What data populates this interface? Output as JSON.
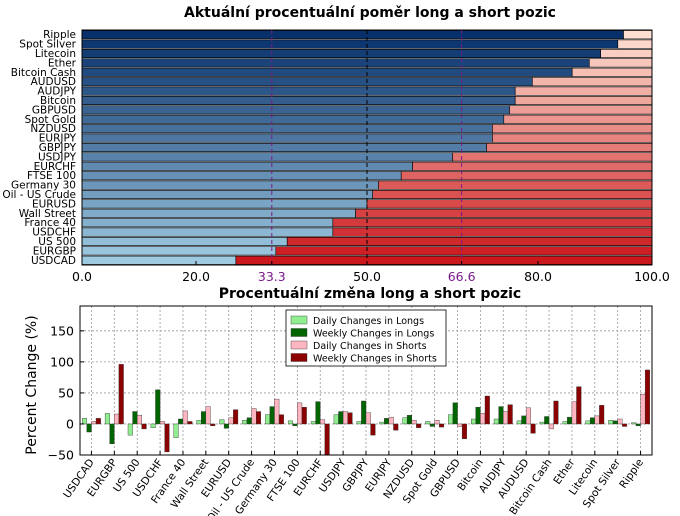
{
  "chart_data": [
    {
      "type": "bar",
      "orientation": "horizontal",
      "stacked": true,
      "title": "Aktuální procentuální poměr long a short pozic",
      "categories": [
        "Ripple",
        "Spot Silver",
        "Litecoin",
        "Ether",
        "Bitcoin Cash",
        "AUDUSD",
        "AUDJPY",
        "Bitcoin",
        "GBPUSD",
        "Spot Gold",
        "NZDUSD",
        "EURJPY",
        "GBPJPY",
        "USDJPY",
        "EURCHF",
        "FTSE 100",
        "Germany 30",
        "Oil - US Crude",
        "EURUSD",
        "Wall Street",
        "France 40",
        "USDCHF",
        "US 500",
        "EURGBP",
        "USDCAD"
      ],
      "long_percent": [
        95,
        94,
        91,
        89,
        86,
        79,
        76,
        76,
        75,
        74,
        72,
        72,
        71,
        65,
        58,
        56,
        52,
        51,
        50,
        48,
        44,
        44,
        36,
        34,
        27
      ],
      "xlim": [
        0,
        100
      ],
      "xticks": [
        "0.0",
        "20.0",
        "33.3",
        "50.0",
        "66.6",
        "80.0",
        "100.0"
      ],
      "marker_lines": [
        "33.3",
        "50.0",
        "66.6"
      ],
      "colors": {
        "long_dark": "#08306b",
        "long_light": "#9ecae1",
        "short_light": "#fee0d2",
        "short_dark": "#cb181d",
        "marker": "#7a1a8a"
      }
    },
    {
      "type": "bar",
      "title": "Procentuální změna long a short pozic",
      "ylabel": "Percent Change (%)",
      "ylim": [
        -50,
        190
      ],
      "yticks": [
        "150",
        "100",
        "50",
        "0",
        "−50"
      ],
      "categories": [
        "USDCAD",
        "EURGBP",
        "US 500",
        "USDCHF",
        "France 40",
        "Wall Street",
        "EURUSD",
        "Oil - US Crude",
        "Germany 30",
        "FTSE 100",
        "EURCHF",
        "USDJPY",
        "GBPJPY",
        "EURJPY",
        "NZDUSD",
        "Spot Gold",
        "GBPUSD",
        "Bitcoin",
        "AUDJPY",
        "AUDUSD",
        "Bitcoin Cash",
        "Ether",
        "Litecoin",
        "Spot Silver",
        "Ripple"
      ],
      "series": [
        {
          "name": "Daily Changes in Longs",
          "color": "#90ee90",
          "values": [
            9,
            17,
            -18,
            -6,
            -22,
            6,
            7,
            6,
            15,
            5,
            4,
            15,
            4,
            3,
            10,
            4,
            15,
            8,
            8,
            5,
            3,
            4,
            5,
            6,
            2
          ]
        },
        {
          "name": "Weekly Changes in Longs",
          "color": "#006400",
          "values": [
            -13,
            -32,
            20,
            55,
            8,
            20,
            -7,
            10,
            28,
            -3,
            36,
            20,
            37,
            9,
            14,
            -4,
            34,
            27,
            28,
            13,
            12,
            11,
            10,
            5,
            -3
          ]
        },
        {
          "name": "Daily Changes in Shorts",
          "color": "#ffb6c1",
          "values": [
            4,
            16,
            14,
            4,
            21,
            28,
            10,
            25,
            40,
            34,
            7,
            20,
            18,
            11,
            6,
            6,
            -4,
            17,
            20,
            26,
            -8,
            36,
            13,
            8,
            48
          ]
        },
        {
          "name": "Weekly Changes in Shorts",
          "color": "#8b0000",
          "values": [
            9,
            96,
            -8,
            -45,
            4,
            -3,
            23,
            20,
            15,
            27,
            -50,
            18,
            -18,
            -10,
            -6,
            -5,
            -24,
            45,
            31,
            -15,
            37,
            60,
            30,
            -4,
            87
          ]
        }
      ]
    }
  ]
}
